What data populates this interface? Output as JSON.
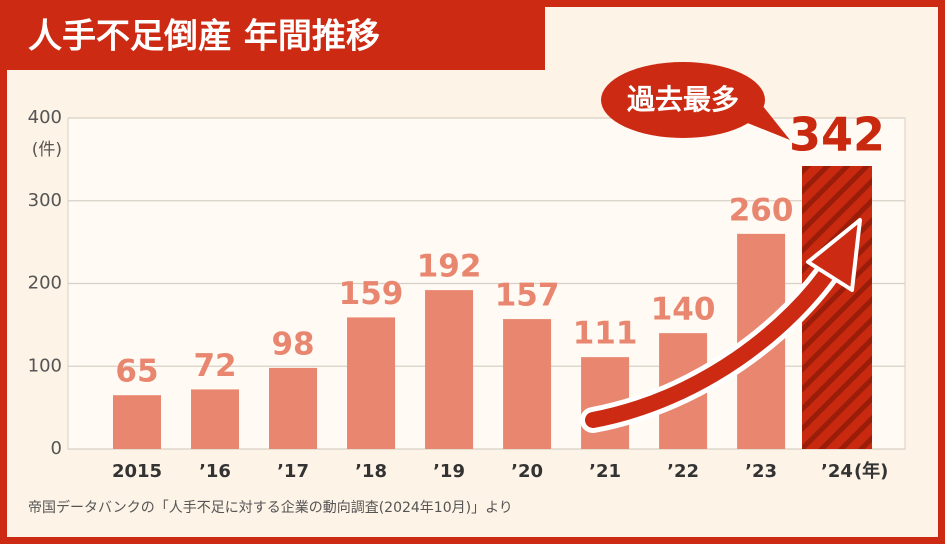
{
  "chart_data": {
    "type": "bar",
    "title": "人手不足倒産 年間推移",
    "categories": [
      "2015",
      "’16",
      "’17",
      "’18",
      "’19",
      "’20",
      "’21",
      "’22",
      "’23",
      "’24"
    ],
    "values": [
      65,
      72,
      98,
      159,
      192,
      157,
      111,
      140,
      260,
      342
    ],
    "colors": [
      "#e8866f",
      "#e8866f",
      "#e8866f",
      "#e8866f",
      "#e8866f",
      "#e8866f",
      "#e8866f",
      "#e8866f",
      "#e8866f",
      "#c8290f"
    ],
    "ylim": [
      0,
      400
    ],
    "yticks": [
      0,
      100,
      200,
      300,
      400
    ],
    "grid": true,
    "y_label": "(件)",
    "x_label": "(年)",
    "annotation": "過去最多",
    "source": "帝国データバンクの「人手不足に対する企業の動向調査(2024年10月)」より"
  }
}
